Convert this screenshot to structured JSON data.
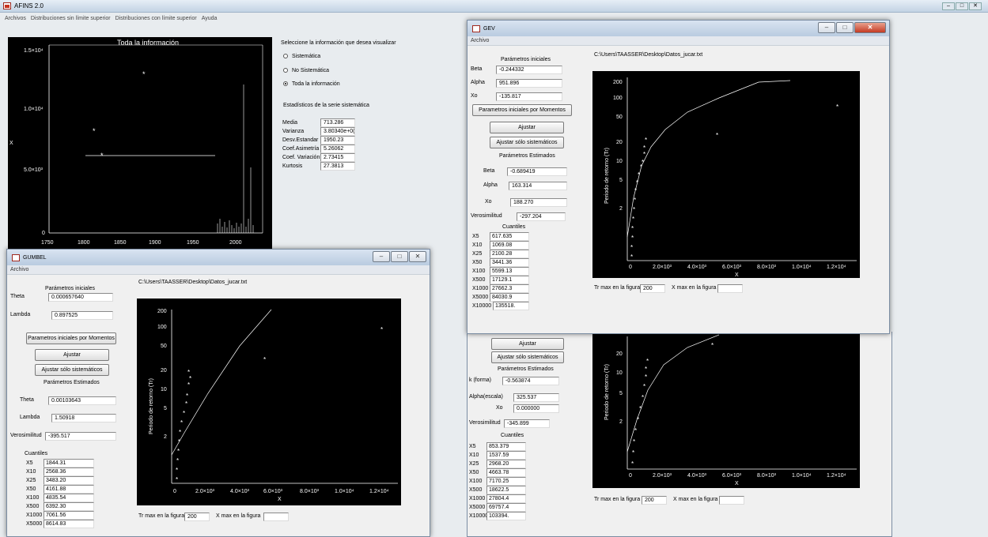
{
  "app": {
    "title": "AFINS 2.0",
    "menu": [
      "Archivos",
      "Distribuciones sin límite superior",
      "Distribuciones con límite superior",
      "Ayuda"
    ]
  },
  "main": {
    "plot_title": "Toda la información",
    "select_label": "Seleccione la información que desea visualizar",
    "options": [
      "Sistemática",
      "No Sistemática",
      "Toda la información"
    ],
    "stats_title": "Estadísticos de la serie sistemática",
    "stats": [
      {
        "k": "Media",
        "v": "713.286"
      },
      {
        "k": "Varianza",
        "v": "3.80340e+0("
      },
      {
        "k": "Desv.Estandar",
        "v": "1950.23"
      },
      {
        "k": "Coef.Asimetría",
        "v": "5.26062"
      },
      {
        "k": "Coef. Variación",
        "v": "2.73415"
      },
      {
        "k": "Kurtosis",
        "v": "27.3813"
      }
    ],
    "y_label": "X"
  },
  "gumbel": {
    "title": "GUMBEL",
    "menu": "Archivo",
    "path": "C:\\Users\\TAASSER\\Desktop\\Datos_jucar.txt",
    "init_title": "Parámetros iniciales",
    "theta_label": "Theta",
    "theta_val": "0.000657640",
    "lambda_label": "Lambda",
    "lambda_val": "0.897525",
    "btn_moments": "Parametros iniciales por Momentos",
    "btn_fit": "Ajustar",
    "btn_fit_sys": "Ajustar sólo sistemáticos",
    "est_title": "Parámetros Estimados",
    "theta_est": "0.00103643",
    "lambda_est": "1.50918",
    "ver_label": "Verosimilitud",
    "ver_val": "-395.517",
    "quant_title": "Cuantiles",
    "quant": [
      {
        "k": "X5",
        "v": "1844.31"
      },
      {
        "k": "X10",
        "v": "2568.36"
      },
      {
        "k": "X25",
        "v": "3483.20"
      },
      {
        "k": "X50",
        "v": "4161.88"
      },
      {
        "k": "X100",
        "v": "4835.54"
      },
      {
        "k": "X500",
        "v": "6392.30"
      },
      {
        "k": "X1000",
        "v": "7061.56"
      },
      {
        "k": "X5000",
        "v": "8614.83"
      }
    ],
    "tr_label": "Tr max en la figura",
    "tr_val": "200",
    "xmax_label": "X max en la figura",
    "xmax_val": ""
  },
  "gev": {
    "title": "GEV",
    "menu": "Archivo",
    "path": "C:\\Users\\TAASSER\\Desktop\\Datos_jucar.txt",
    "init_title": "Parámetros iniciales",
    "beta_label": "Beta",
    "beta_val": "-0.244332",
    "alpha_label": "Alpha",
    "alpha_val": "951.896",
    "xo_label": "Xo",
    "xo_val": "-135.817",
    "btn_moments": "Parametros iniciales por Momentos",
    "btn_fit": "Ajustar",
    "btn_fit_sys": "Ajustar sólo sistemáticos",
    "est_title": "Parámetros Estimados",
    "beta_est": "-0.689419",
    "alpha_est": "163.314",
    "xo_est": "188.270",
    "ver_label": "Verosimilitud",
    "ver_val": "-297.204",
    "quant_title": "Cuantiles",
    "quant": [
      {
        "k": "X5",
        "v": "617.635"
      },
      {
        "k": "X10",
        "v": "1069.08"
      },
      {
        "k": "X25",
        "v": "2100.28"
      },
      {
        "k": "X50",
        "v": "3441.36"
      },
      {
        "k": "X100",
        "v": "5599.13"
      },
      {
        "k": "X500",
        "v": "17129.1"
      },
      {
        "k": "X1000",
        "v": "27662.3"
      },
      {
        "k": "X5000",
        "v": "84030.9"
      },
      {
        "k": "X10000",
        "v": "135518."
      }
    ],
    "tr_label": "Tr max en la figura",
    "tr_val": "200",
    "xmax_label": "X max en la figura",
    "xmax_val": ""
  },
  "gev2": {
    "btn_fit": "Ajustar",
    "btn_fit_sys": "Ajustar sólo sistemáticos",
    "est_title": "Parámetros Estimados",
    "k_label": "k (forma)",
    "k_val": "-0.563874",
    "alpha_label": "Alpha(escala)",
    "alpha_val": "325.537",
    "xo_label": "Xo",
    "xo_val": "0.000000",
    "ver_label": "Verosimilitud",
    "ver_val": "-345.899",
    "quant_title": "Cuantiles",
    "quant": [
      {
        "k": "X5",
        "v": "853.379"
      },
      {
        "k": "X10",
        "v": "1537.59"
      },
      {
        "k": "X25",
        "v": "2968.20"
      },
      {
        "k": "X50",
        "v": "4663.78"
      },
      {
        "k": "X100",
        "v": "7170.25"
      },
      {
        "k": "X500",
        "v": "18622.5"
      },
      {
        "k": "X1000",
        "v": "27804.4"
      },
      {
        "k": "X5000",
        "v": "69757.4"
      },
      {
        "k": "X10000",
        "v": "103394."
      }
    ],
    "tr_label": "Tr max en la figura",
    "tr_val": "200",
    "xmax_label": "X max en la figura",
    "xmax_val": ""
  },
  "return_plot": {
    "ylabel": "Periodo de retorno (Tr)",
    "xlabel": "X",
    "yticks": [
      "200",
      "100",
      "50",
      "20",
      "10",
      "5",
      "2"
    ],
    "xticks": [
      "0",
      "2.0×10³",
      "4.0×10³",
      "6.0×10³",
      "8.0×10³",
      "1.0×10⁴",
      "1.2×10⁴"
    ]
  },
  "return_plot_small": {
    "yticks": [
      "20",
      "10",
      "5",
      "2"
    ]
  },
  "main_plot_ticks": {
    "y": [
      "1.5×10⁴",
      "1.0×10⁴",
      "5.0×10³",
      "0"
    ],
    "x": [
      "1750",
      "1800",
      "1850",
      "1900",
      "1950",
      "2000"
    ]
  },
  "colors": {
    "plot_bg": "#000000",
    "titlebar": "#c3d3e4",
    "close": "#c43b24"
  }
}
